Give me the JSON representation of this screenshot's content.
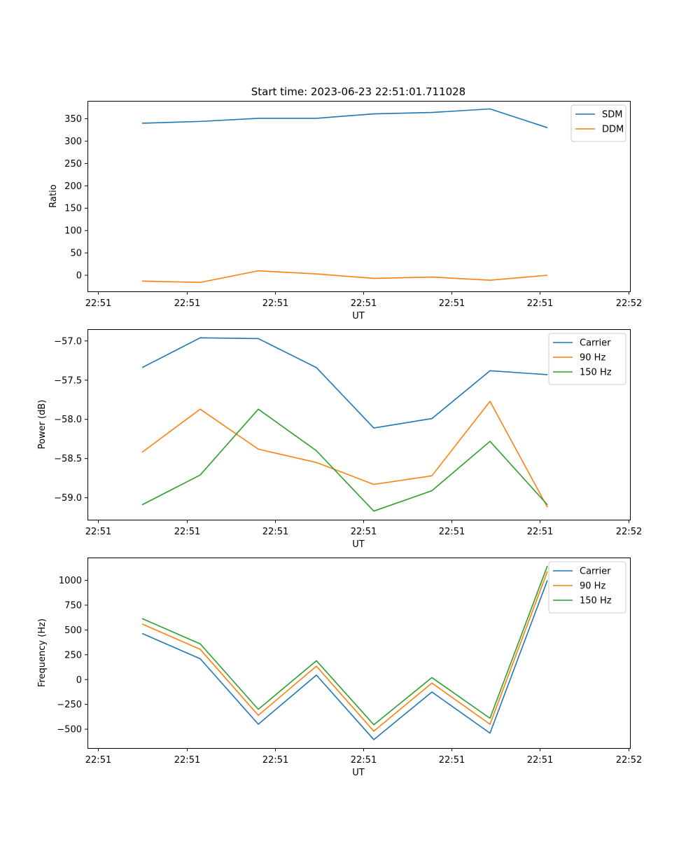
{
  "figure_title": "Start time: 2023-06-23 22:51:01.711028",
  "colors": {
    "blue": "#1f77b4",
    "orange": "#ff7f0e",
    "green": "#2ca02c"
  },
  "chart_data": [
    {
      "type": "line",
      "xlabel": "UT",
      "ylabel": "Ratio",
      "xticks": [
        "22:51",
        "22:51",
        "22:51",
        "22:51",
        "22:51",
        "22:51",
        "22:52"
      ],
      "yticks": [
        0,
        50,
        100,
        150,
        200,
        250,
        300,
        350
      ],
      "ylim": [
        -36,
        390
      ],
      "legend_position": "upper-right",
      "grid": false,
      "series": [
        {
          "name": "SDM",
          "color": "#1f77b4",
          "values": [
            340,
            344,
            351,
            351,
            361,
            364,
            372,
            330
          ]
        },
        {
          "name": "DDM",
          "color": "#ff7f0e",
          "values": [
            -13,
            -16,
            10,
            3,
            -7,
            -4,
            -11,
            0
          ]
        }
      ]
    },
    {
      "type": "line",
      "xlabel": "UT",
      "ylabel": "Power (dB)",
      "xticks": [
        "22:51",
        "22:51",
        "22:51",
        "22:51",
        "22:51",
        "22:51",
        "22:52"
      ],
      "yticks": [
        -57.0,
        -57.5,
        -58.0,
        -58.5,
        -59.0
      ],
      "ylim": [
        -59.28,
        -56.85
      ],
      "legend_position": "upper-right",
      "grid": false,
      "series": [
        {
          "name": "Carrier",
          "color": "#1f77b4",
          "values": [
            -57.34,
            -56.96,
            -56.97,
            -57.34,
            -58.11,
            -57.99,
            -57.38,
            -57.43
          ]
        },
        {
          "name": "90 Hz",
          "color": "#ff7f0e",
          "values": [
            -58.42,
            -57.87,
            -58.38,
            -58.55,
            -58.83,
            -58.72,
            -57.77,
            -59.12
          ]
        },
        {
          "name": "150 Hz",
          "color": "#2ca02c",
          "values": [
            -59.09,
            -58.71,
            -57.87,
            -58.4,
            -59.17,
            -58.91,
            -58.28,
            -59.09
          ]
        }
      ]
    },
    {
      "type": "line",
      "xlabel": "UT",
      "ylabel": "Frequency (Hz)",
      "xticks": [
        "22:51",
        "22:51",
        "22:51",
        "22:51",
        "22:51",
        "22:51",
        "22:52"
      ],
      "yticks": [
        -500,
        -250,
        0,
        250,
        500,
        750,
        1000
      ],
      "ylim": [
        -690,
        1230
      ],
      "legend_position": "upper-right",
      "grid": false,
      "series": [
        {
          "name": "Carrier",
          "color": "#1f77b4",
          "values": [
            465,
            210,
            -450,
            45,
            -605,
            -125,
            -540,
            1000
          ]
        },
        {
          "name": "90 Hz",
          "color": "#ff7f0e",
          "values": [
            560,
            305,
            -360,
            135,
            -520,
            -35,
            -450,
            1090
          ]
        },
        {
          "name": "150 Hz",
          "color": "#2ca02c",
          "values": [
            615,
            360,
            -300,
            190,
            -455,
            20,
            -390,
            1145
          ]
        }
      ]
    }
  ]
}
